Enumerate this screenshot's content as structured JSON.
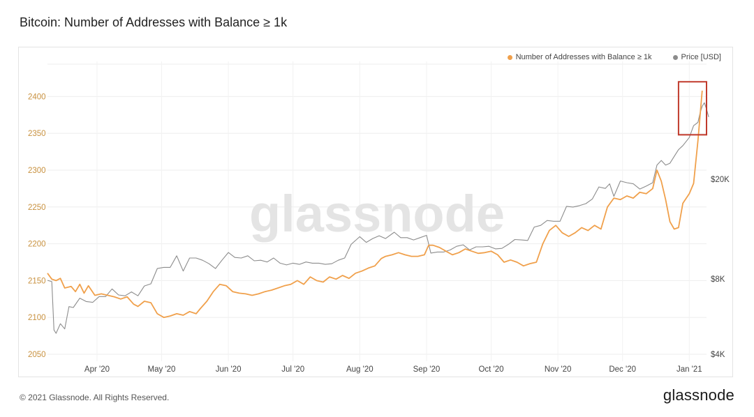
{
  "title": "Bitcoin: Number of Addresses with Balance ≥ 1k",
  "footer": {
    "copyright": "© 2021 Glassnode. All Rights Reserved.",
    "logo": "glassnode"
  },
  "watermark": "glassnode",
  "colors": {
    "addresses": "#f7931a",
    "price": "#8c8c8c",
    "highlight": "#c0392b",
    "left_axis": "#c8913f"
  },
  "chart_data": {
    "type": "line",
    "grid": true,
    "legend_position": "top-right",
    "x_range": [
      "2020-03-09",
      "2021-01-09"
    ],
    "x_ticks": [
      {
        "date": "2020-04-01",
        "label": "Apr '20"
      },
      {
        "date": "2020-05-01",
        "label": "May '20"
      },
      {
        "date": "2020-06-01",
        "label": "Jun '20"
      },
      {
        "date": "2020-07-01",
        "label": "Jul '20"
      },
      {
        "date": "2020-08-01",
        "label": "Aug '20"
      },
      {
        "date": "2020-09-01",
        "label": "Sep '20"
      },
      {
        "date": "2020-10-01",
        "label": "Oct '20"
      },
      {
        "date": "2020-11-01",
        "label": "Nov '20"
      },
      {
        "date": "2020-12-01",
        "label": "Dec '20"
      },
      {
        "date": "2021-01-01",
        "label": "Jan '21"
      }
    ],
    "y_left": {
      "range": [
        2050,
        2400
      ],
      "ticks": [
        2050,
        2100,
        2150,
        2200,
        2250,
        2300,
        2350,
        2400
      ]
    },
    "y_right": {
      "scale": "log",
      "range": [
        4000,
        40000
      ],
      "ticks": [
        {
          "value": 4000,
          "label": "$4K"
        },
        {
          "value": 8000,
          "label": "$8K"
        },
        {
          "value": 20000,
          "label": "$20K"
        }
      ]
    },
    "highlight_box": {
      "x": [
        "2020-12-27",
        "2021-01-09"
      ],
      "y": [
        2348,
        2420
      ]
    },
    "series": [
      {
        "name": "Number of Addresses with Balance ≥ 1k",
        "axis": "left",
        "points": [
          [
            "2020-03-09",
            2160
          ],
          [
            "2020-03-11",
            2152
          ],
          [
            "2020-03-13",
            2150
          ],
          [
            "2020-03-15",
            2153
          ],
          [
            "2020-03-17",
            2140
          ],
          [
            "2020-03-20",
            2142
          ],
          [
            "2020-03-22",
            2135
          ],
          [
            "2020-03-24",
            2145
          ],
          [
            "2020-03-26",
            2133
          ],
          [
            "2020-03-28",
            2143
          ],
          [
            "2020-03-31",
            2130
          ],
          [
            "2020-04-03",
            2132
          ],
          [
            "2020-04-06",
            2130
          ],
          [
            "2020-04-09",
            2128
          ],
          [
            "2020-04-12",
            2125
          ],
          [
            "2020-04-15",
            2128
          ],
          [
            "2020-04-18",
            2118
          ],
          [
            "2020-04-20",
            2115
          ],
          [
            "2020-04-23",
            2122
          ],
          [
            "2020-04-26",
            2120
          ],
          [
            "2020-04-29",
            2105
          ],
          [
            "2020-05-02",
            2100
          ],
          [
            "2020-05-05",
            2102
          ],
          [
            "2020-05-08",
            2105
          ],
          [
            "2020-05-11",
            2103
          ],
          [
            "2020-05-14",
            2108
          ],
          [
            "2020-05-17",
            2105
          ],
          [
            "2020-05-19",
            2112
          ],
          [
            "2020-05-22",
            2122
          ],
          [
            "2020-05-25",
            2135
          ],
          [
            "2020-05-28",
            2145
          ],
          [
            "2020-05-31",
            2143
          ],
          [
            "2020-06-03",
            2135
          ],
          [
            "2020-06-06",
            2133
          ],
          [
            "2020-06-09",
            2132
          ],
          [
            "2020-06-12",
            2130
          ],
          [
            "2020-06-15",
            2132
          ],
          [
            "2020-06-18",
            2135
          ],
          [
            "2020-06-21",
            2137
          ],
          [
            "2020-06-24",
            2140
          ],
          [
            "2020-06-27",
            2143
          ],
          [
            "2020-06-30",
            2145
          ],
          [
            "2020-07-03",
            2150
          ],
          [
            "2020-07-06",
            2145
          ],
          [
            "2020-07-09",
            2155
          ],
          [
            "2020-07-12",
            2150
          ],
          [
            "2020-07-15",
            2148
          ],
          [
            "2020-07-18",
            2155
          ],
          [
            "2020-07-21",
            2152
          ],
          [
            "2020-07-24",
            2157
          ],
          [
            "2020-07-27",
            2153
          ],
          [
            "2020-07-30",
            2160
          ],
          [
            "2020-08-02",
            2163
          ],
          [
            "2020-08-05",
            2167
          ],
          [
            "2020-08-08",
            2170
          ],
          [
            "2020-08-11",
            2180
          ],
          [
            "2020-08-13",
            2183
          ],
          [
            "2020-08-16",
            2185
          ],
          [
            "2020-08-19",
            2188
          ],
          [
            "2020-08-22",
            2185
          ],
          [
            "2020-08-25",
            2183
          ],
          [
            "2020-08-28",
            2183
          ],
          [
            "2020-08-31",
            2185
          ],
          [
            "2020-09-02",
            2198
          ],
          [
            "2020-09-04",
            2198
          ],
          [
            "2020-09-07",
            2195
          ],
          [
            "2020-09-10",
            2190
          ],
          [
            "2020-09-13",
            2185
          ],
          [
            "2020-09-16",
            2188
          ],
          [
            "2020-09-19",
            2193
          ],
          [
            "2020-09-22",
            2190
          ],
          [
            "2020-09-25",
            2187
          ],
          [
            "2020-09-28",
            2188
          ],
          [
            "2020-10-01",
            2190
          ],
          [
            "2020-10-04",
            2185
          ],
          [
            "2020-10-07",
            2175
          ],
          [
            "2020-10-10",
            2178
          ],
          [
            "2020-10-13",
            2175
          ],
          [
            "2020-10-16",
            2170
          ],
          [
            "2020-10-19",
            2173
          ],
          [
            "2020-10-22",
            2175
          ],
          [
            "2020-10-25",
            2200
          ],
          [
            "2020-10-28",
            2218
          ],
          [
            "2020-10-31",
            2225
          ],
          [
            "2020-11-03",
            2215
          ],
          [
            "2020-11-06",
            2210
          ],
          [
            "2020-11-09",
            2215
          ],
          [
            "2020-11-12",
            2222
          ],
          [
            "2020-11-15",
            2218
          ],
          [
            "2020-11-18",
            2225
          ],
          [
            "2020-11-21",
            2220
          ],
          [
            "2020-11-24",
            2250
          ],
          [
            "2020-11-27",
            2262
          ],
          [
            "2020-11-30",
            2260
          ],
          [
            "2020-12-03",
            2265
          ],
          [
            "2020-12-06",
            2262
          ],
          [
            "2020-12-09",
            2270
          ],
          [
            "2020-12-12",
            2268
          ],
          [
            "2020-12-15",
            2275
          ],
          [
            "2020-12-17",
            2300
          ],
          [
            "2020-12-19",
            2285
          ],
          [
            "2020-12-21",
            2260
          ],
          [
            "2020-12-23",
            2230
          ],
          [
            "2020-12-25",
            2220
          ],
          [
            "2020-12-27",
            2222
          ],
          [
            "2020-12-29",
            2255
          ],
          [
            "2021-01-01",
            2268
          ],
          [
            "2021-01-03",
            2282
          ],
          [
            "2021-01-05",
            2340
          ],
          [
            "2021-01-07",
            2408
          ]
        ]
      },
      {
        "name": "Price [USD]",
        "axis": "right",
        "points": [
          [
            "2020-03-09",
            7900
          ],
          [
            "2020-03-11",
            7800
          ],
          [
            "2020-03-12",
            5000
          ],
          [
            "2020-03-13",
            4850
          ],
          [
            "2020-03-15",
            5300
          ],
          [
            "2020-03-17",
            5050
          ],
          [
            "2020-03-19",
            6200
          ],
          [
            "2020-03-21",
            6150
          ],
          [
            "2020-03-24",
            6700
          ],
          [
            "2020-03-27",
            6500
          ],
          [
            "2020-03-30",
            6450
          ],
          [
            "2020-04-02",
            6800
          ],
          [
            "2020-04-05",
            6800
          ],
          [
            "2020-04-08",
            7300
          ],
          [
            "2020-04-11",
            6900
          ],
          [
            "2020-04-14",
            6850
          ],
          [
            "2020-04-17",
            7100
          ],
          [
            "2020-04-20",
            6850
          ],
          [
            "2020-04-23",
            7500
          ],
          [
            "2020-04-26",
            7650
          ],
          [
            "2020-04-29",
            8800
          ],
          [
            "2020-05-02",
            8900
          ],
          [
            "2020-05-05",
            8900
          ],
          [
            "2020-05-08",
            9900
          ],
          [
            "2020-05-11",
            8600
          ],
          [
            "2020-05-14",
            9700
          ],
          [
            "2020-05-17",
            9700
          ],
          [
            "2020-05-20",
            9500
          ],
          [
            "2020-05-23",
            9200
          ],
          [
            "2020-05-26",
            8800
          ],
          [
            "2020-05-29",
            9500
          ],
          [
            "2020-06-01",
            10200
          ],
          [
            "2020-06-04",
            9750
          ],
          [
            "2020-06-07",
            9700
          ],
          [
            "2020-06-10",
            9900
          ],
          [
            "2020-06-13",
            9450
          ],
          [
            "2020-06-16",
            9500
          ],
          [
            "2020-06-19",
            9350
          ],
          [
            "2020-06-22",
            9700
          ],
          [
            "2020-06-25",
            9250
          ],
          [
            "2020-06-28",
            9100
          ],
          [
            "2020-07-01",
            9250
          ],
          [
            "2020-07-04",
            9150
          ],
          [
            "2020-07-07",
            9350
          ],
          [
            "2020-07-10",
            9250
          ],
          [
            "2020-07-13",
            9250
          ],
          [
            "2020-07-16",
            9150
          ],
          [
            "2020-07-19",
            9200
          ],
          [
            "2020-07-22",
            9500
          ],
          [
            "2020-07-25",
            9700
          ],
          [
            "2020-07-28",
            11000
          ],
          [
            "2020-08-01",
            11800
          ],
          [
            "2020-08-04",
            11200
          ],
          [
            "2020-08-07",
            11600
          ],
          [
            "2020-08-10",
            11900
          ],
          [
            "2020-08-13",
            11600
          ],
          [
            "2020-08-17",
            12300
          ],
          [
            "2020-08-20",
            11700
          ],
          [
            "2020-08-23",
            11700
          ],
          [
            "2020-08-26",
            11450
          ],
          [
            "2020-08-29",
            11700
          ],
          [
            "2020-09-01",
            11950
          ],
          [
            "2020-09-03",
            10150
          ],
          [
            "2020-09-06",
            10250
          ],
          [
            "2020-09-09",
            10250
          ],
          [
            "2020-09-12",
            10450
          ],
          [
            "2020-09-15",
            10800
          ],
          [
            "2020-09-18",
            10950
          ],
          [
            "2020-09-21",
            10450
          ],
          [
            "2020-09-24",
            10750
          ],
          [
            "2020-09-27",
            10750
          ],
          [
            "2020-09-30",
            10800
          ],
          [
            "2020-10-03",
            10550
          ],
          [
            "2020-10-06",
            10600
          ],
          [
            "2020-10-09",
            11000
          ],
          [
            "2020-10-12",
            11500
          ],
          [
            "2020-10-15",
            11450
          ],
          [
            "2020-10-18",
            11400
          ],
          [
            "2020-10-21",
            12900
          ],
          [
            "2020-10-24",
            13100
          ],
          [
            "2020-10-27",
            13700
          ],
          [
            "2020-10-30",
            13600
          ],
          [
            "2020-11-02",
            13600
          ],
          [
            "2020-11-05",
            15600
          ],
          [
            "2020-11-08",
            15500
          ],
          [
            "2020-11-11",
            15700
          ],
          [
            "2020-11-14",
            16000
          ],
          [
            "2020-11-17",
            16700
          ],
          [
            "2020-11-20",
            18650
          ],
          [
            "2020-11-23",
            18400
          ],
          [
            "2020-11-25",
            19200
          ],
          [
            "2020-11-27",
            17100
          ],
          [
            "2020-11-30",
            19700
          ],
          [
            "2020-12-03",
            19400
          ],
          [
            "2020-12-06",
            19200
          ],
          [
            "2020-12-09",
            18300
          ],
          [
            "2020-12-12",
            18800
          ],
          [
            "2020-12-15",
            19400
          ],
          [
            "2020-12-17",
            22800
          ],
          [
            "2020-12-19",
            23800
          ],
          [
            "2020-12-21",
            22800
          ],
          [
            "2020-12-23",
            23200
          ],
          [
            "2020-12-25",
            24700
          ],
          [
            "2020-12-27",
            26300
          ],
          [
            "2020-12-29",
            27300
          ],
          [
            "2021-01-01",
            29400
          ],
          [
            "2021-01-03",
            32800
          ],
          [
            "2021-01-05",
            33800
          ],
          [
            "2021-01-06",
            36800
          ],
          [
            "2021-01-07",
            39200
          ],
          [
            "2021-01-08",
            40500
          ],
          [
            "2021-01-09",
            38200
          ],
          [
            "2021-01-10",
            35500
          ]
        ]
      }
    ]
  }
}
